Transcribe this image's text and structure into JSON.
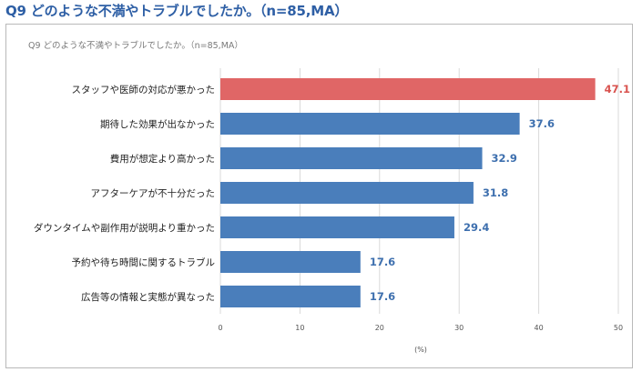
{
  "header": {
    "title": "Q9 どのような不満やトラブルでしたか。（n=85,MA）"
  },
  "colors": {
    "highlight": "#e06666",
    "bar": "#4a7ebb",
    "highlight_label": "#d9534f",
    "bar_label": "#3d6fae",
    "grid": "#d9d9d9"
  },
  "chart_data": {
    "type": "bar",
    "orientation": "horizontal",
    "title": "Q9 どのような不満やトラブルでしたか。（n=85,MA）",
    "categories": [
      "スタッフや医師の対応が悪かった",
      "期待した効果が出なかった",
      "費用が想定より高かった",
      "アフターケアが不十分だった",
      "ダウンタイムや副作用が説明より重かった",
      "予約や待ち時間に関するトラブル",
      "広告等の情報と実態が異なった"
    ],
    "values": [
      47.1,
      37.6,
      32.9,
      31.8,
      29.4,
      17.6,
      17.6
    ],
    "value_labels": [
      "47.1",
      "37.6",
      "32.9",
      "31.8",
      "29.4",
      "17.6",
      "17.6"
    ],
    "highlight_index": 0,
    "xlabel": "(%)",
    "xlim": [
      0,
      50
    ],
    "xticks": [
      "0",
      "10",
      "20",
      "30",
      "40",
      "50"
    ],
    "grid": true,
    "legend": "none"
  }
}
